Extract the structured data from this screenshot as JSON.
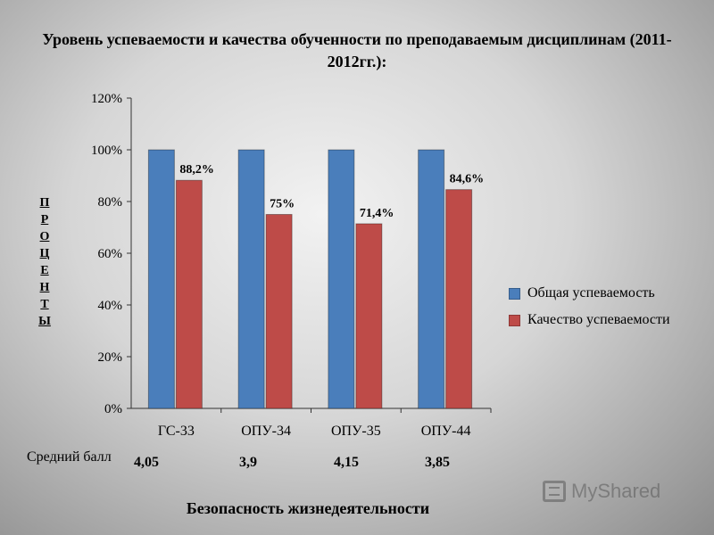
{
  "chart_data": {
    "type": "bar",
    "title": "Уровень успеваемости и качества обученности по преподаваемым дисциплинам (2011-2012гг.):",
    "xlabel": "Безопасность жизнедеятельности",
    "ylabel": "ПРОЦЕНТЫ",
    "categories": [
      "ГС-33",
      "ОПУ-34",
      "ОПУ-35",
      "ОПУ-44"
    ],
    "series": [
      {
        "name": "Общая успеваемость",
        "color": "#4a7ebb",
        "values": [
          100,
          100,
          100,
          100
        ],
        "labels": [
          "",
          "",
          "",
          ""
        ]
      },
      {
        "name": "Качество успеваемости",
        "color": "#be4b48",
        "values": [
          88.2,
          75,
          71.4,
          84.6
        ],
        "labels": [
          "88,2%",
          "75%",
          "71,4%",
          "84,6%"
        ]
      }
    ],
    "ylim": [
      0,
      120
    ],
    "yticks": [
      "0%",
      "20%",
      "40%",
      "60%",
      "80%",
      "100%",
      "120%"
    ],
    "grid": false,
    "legend": "right"
  },
  "average": {
    "label": "Средний балл",
    "values": [
      "4,05",
      "3,9",
      "4,15",
      "3,85"
    ]
  },
  "watermark": "MyShared"
}
